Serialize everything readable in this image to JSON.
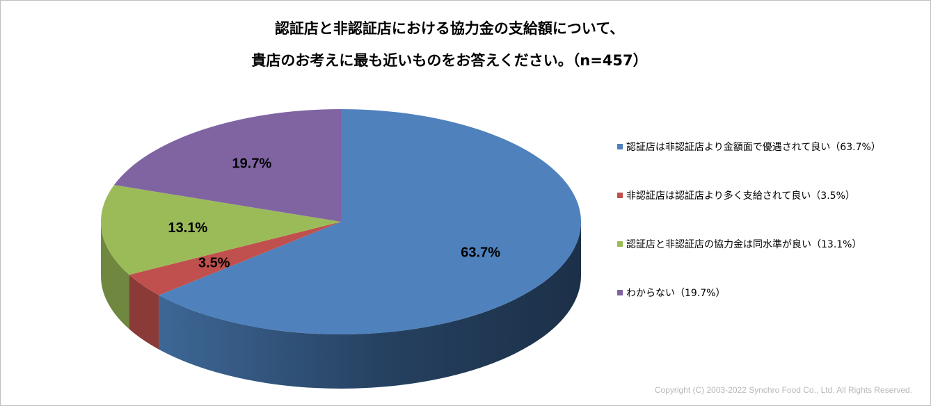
{
  "chart_data": {
    "type": "pie",
    "title_lines": [
      "認証店と非認証店における協力金の支給額について、",
      "貴店のお考えに最も近いものをお答えください。（n=457）"
    ],
    "slices": [
      {
        "label": "認証店は非認証店より金額面で優遇されて良い（63.7%）",
        "value": 63.7,
        "data_label": "63.7%",
        "color": "#4f81bd"
      },
      {
        "label": "非認証店は認証店より多く支給されて良い（3.5%）",
        "value": 3.5,
        "data_label": "3.5%",
        "color": "#c0504d"
      },
      {
        "label": "認証店と非認証店の協力金は同水準が良い（13.1%）",
        "value": 13.1,
        "data_label": "13.1%",
        "color": "#9bbb59"
      },
      {
        "label": "わからない（19.7%）",
        "value": 19.7,
        "data_label": "19.7%",
        "color": "#8064a2"
      }
    ],
    "legend_position": "right"
  },
  "footer": {
    "copyright": "Copyright (C) 2003-2022  Synchro Food Co., Ltd. All Rights Reserved."
  }
}
